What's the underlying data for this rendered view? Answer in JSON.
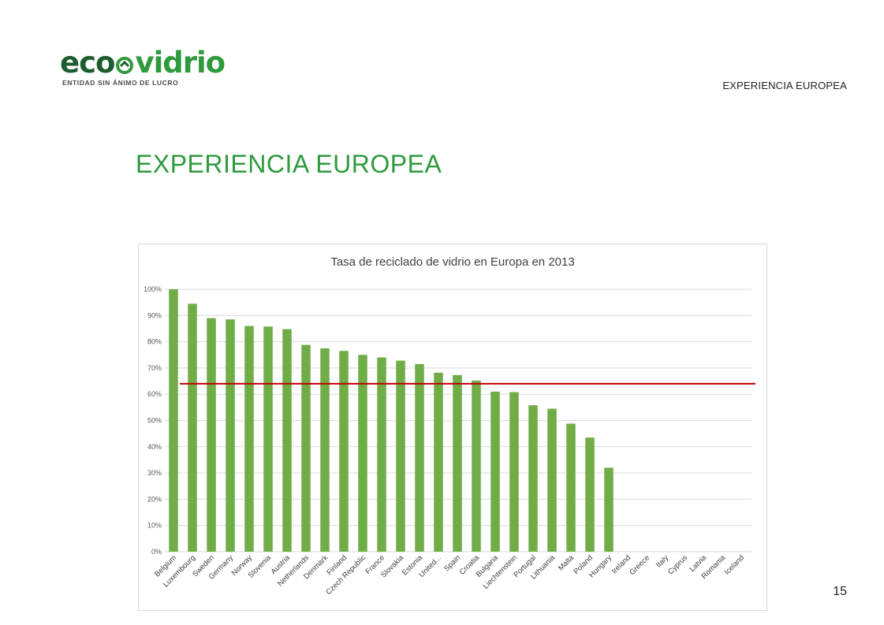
{
  "logo": {
    "word_part1": "eco",
    "word_part2": "vidrio",
    "tagline": "ENTIDAD SIN ÁNIMO DE LUCRO",
    "icon": "recycle-arrow-icon",
    "colors": {
      "dark": "#1d5c2e",
      "light": "#2f9a3d"
    }
  },
  "header": {
    "section_label": "EXPERIENCIA EUROPEA"
  },
  "page": {
    "title": "EXPERIENCIA EUROPEA",
    "number": "15"
  },
  "colors": {
    "bar": "#70ad47",
    "reference_line": "#c00000",
    "title": "#2e9a3e"
  },
  "chart_data": {
    "type": "bar",
    "title": "Tasa de reciclado de vidrio en Europa en 2013",
    "xlabel": "",
    "ylabel": "",
    "ylim": [
      0,
      100
    ],
    "yticks": [
      "0%",
      "10%",
      "20%",
      "30%",
      "40%",
      "50%",
      "60%",
      "70%",
      "80%",
      "90%",
      "100%"
    ],
    "grid": true,
    "legend": "none",
    "categories": [
      "Belgium",
      "Luxembourg",
      "Sweden",
      "Germany",
      "Norway",
      "Slovenia",
      "Austria",
      "Netherlands",
      "Denmark",
      "Finland",
      "Czech Republic",
      "France",
      "Slovakia",
      "Estonia",
      "United...",
      "Spain",
      "Croatia",
      "Bulgaria",
      "Liechtenstein",
      "Portugal",
      "Lithuania",
      "Malta",
      "Poland",
      "Hungary",
      "Ireland",
      "Greece",
      "Italy",
      "Cyprus",
      "Latvia",
      "Romania",
      "Iceland"
    ],
    "values": [
      100,
      94.5,
      89,
      88.5,
      86,
      85.8,
      84.8,
      78.8,
      77.5,
      76.5,
      75,
      74,
      72.8,
      71.5,
      68.2,
      67.3,
      65.2,
      61,
      60.8,
      55.8,
      54.5,
      48.8,
      43.5,
      32,
      null,
      null,
      null,
      null,
      null,
      null,
      null
    ],
    "reference_line": 64
  }
}
